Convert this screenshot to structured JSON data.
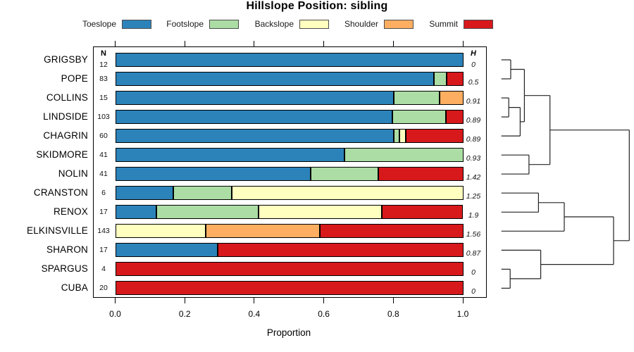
{
  "chart_data": {
    "type": "bar",
    "variant": "horizontal-stacked-proportions-with-dendrogram",
    "title": "Hillslope Position: sibling",
    "xlabel": "Proportion",
    "xlim": [
      0,
      1
    ],
    "x_ticks": [
      "0.0",
      "0.2",
      "0.4",
      "0.6",
      "0.8",
      "1.0"
    ],
    "grid": false,
    "n_column_header": "N",
    "h_column_header": "H",
    "legend_position": "top",
    "legend": [
      {
        "label": "Toeslope",
        "color": "#2B83BA"
      },
      {
        "label": "Footslope",
        "color": "#ABDDA4"
      },
      {
        "label": "Backslope",
        "color": "#FFFFBF"
      },
      {
        "label": "Shoulder",
        "color": "#FDAE61"
      },
      {
        "label": "Summit",
        "color": "#D7191C"
      }
    ],
    "rows": [
      {
        "label": "GRIGSBY",
        "n": 12,
        "shannon_h": "0",
        "segments": [
          {
            "category": "Toeslope",
            "value": 1.0
          }
        ]
      },
      {
        "label": "POPE",
        "n": 83,
        "shannon_h": "0.5",
        "segments": [
          {
            "category": "Toeslope",
            "value": 0.916
          },
          {
            "category": "Footslope",
            "value": 0.036
          },
          {
            "category": "Summit",
            "value": 0.048
          }
        ]
      },
      {
        "label": "COLLINS",
        "n": 15,
        "shannon_h": "0.91",
        "segments": [
          {
            "category": "Toeslope",
            "value": 0.8
          },
          {
            "category": "Footslope",
            "value": 0.133
          },
          {
            "category": "Shoulder",
            "value": 0.067
          }
        ]
      },
      {
        "label": "LINDSIDE",
        "n": 103,
        "shannon_h": "0.89",
        "segments": [
          {
            "category": "Toeslope",
            "value": 0.796
          },
          {
            "category": "Footslope",
            "value": 0.155
          },
          {
            "category": "Summit",
            "value": 0.049
          }
        ]
      },
      {
        "label": "CHAGRIN",
        "n": 60,
        "shannon_h": "0.89",
        "segments": [
          {
            "category": "Toeslope",
            "value": 0.8
          },
          {
            "category": "Footslope",
            "value": 0.017
          },
          {
            "category": "Backslope",
            "value": 0.017
          },
          {
            "category": "Summit",
            "value": 0.166
          }
        ]
      },
      {
        "label": "SKIDMORE",
        "n": 41,
        "shannon_h": "0.93",
        "segments": [
          {
            "category": "Toeslope",
            "value": 0.659
          },
          {
            "category": "Footslope",
            "value": 0.341
          }
        ]
      },
      {
        "label": "NOLIN",
        "n": 41,
        "shannon_h": "1.42",
        "segments": [
          {
            "category": "Toeslope",
            "value": 0.561
          },
          {
            "category": "Footslope",
            "value": 0.195
          },
          {
            "category": "Summit",
            "value": 0.244
          }
        ]
      },
      {
        "label": "CRANSTON",
        "n": 6,
        "shannon_h": "1.25",
        "segments": [
          {
            "category": "Toeslope",
            "value": 0.167
          },
          {
            "category": "Footslope",
            "value": 0.167
          },
          {
            "category": "Backslope",
            "value": 0.666
          }
        ]
      },
      {
        "label": "RENOX",
        "n": 17,
        "shannon_h": "1.9",
        "segments": [
          {
            "category": "Toeslope",
            "value": 0.118
          },
          {
            "category": "Footslope",
            "value": 0.294
          },
          {
            "category": "Backslope",
            "value": 0.353
          },
          {
            "category": "Summit",
            "value": 0.235
          }
        ]
      },
      {
        "label": "ELKINSVILLE",
        "n": 143,
        "shannon_h": "1.56",
        "segments": [
          {
            "category": "Backslope",
            "value": 0.259
          },
          {
            "category": "Shoulder",
            "value": 0.329
          },
          {
            "category": "Summit",
            "value": 0.412
          }
        ]
      },
      {
        "label": "SHARON",
        "n": 17,
        "shannon_h": "0.87",
        "segments": [
          {
            "category": "Toeslope",
            "value": 0.294
          },
          {
            "category": "Summit",
            "value": 0.706
          }
        ]
      },
      {
        "label": "SPARGUS",
        "n": 4,
        "shannon_h": "0",
        "segments": [
          {
            "category": "Summit",
            "value": 1.0
          }
        ]
      },
      {
        "label": "CUBA",
        "n": 20,
        "shannon_h": "0",
        "segments": [
          {
            "category": "Summit",
            "value": 1.0
          }
        ]
      }
    ],
    "dendrogram": {
      "side": "right",
      "tree": {
        "height": 1.0,
        "children": [
          {
            "height": 0.38,
            "children": [
              {
                "height": 0.18,
                "children": [
                  {
                    "height": 0.073,
                    "children": [
                      "GRIGSBY",
                      "POPE"
                    ]
                  },
                  {
                    "height": 0.147,
                    "children": [
                      {
                        "height": 0.058,
                        "children": [
                          "COLLINS",
                          "LINDSIDE"
                        ]
                      },
                      "CHAGRIN"
                    ]
                  }
                ]
              },
              {
                "height": 0.216,
                "children": [
                  "SKIDMORE",
                  "NOLIN"
                ]
              }
            ]
          },
          {
            "height": 0.877,
            "children": [
              {
                "height": 0.492,
                "children": [
                  {
                    "height": 0.29,
                    "children": [
                      "CRANSTON",
                      "RENOX"
                    ]
                  },
                  "ELKINSVILLE"
                ]
              },
              {
                "height": 0.308,
                "children": [
                  "SHARON",
                  {
                    "height": 0.069,
                    "children": [
                      "SPARGUS",
                      "CUBA"
                    ]
                  }
                ]
              }
            ]
          }
        ]
      }
    }
  }
}
